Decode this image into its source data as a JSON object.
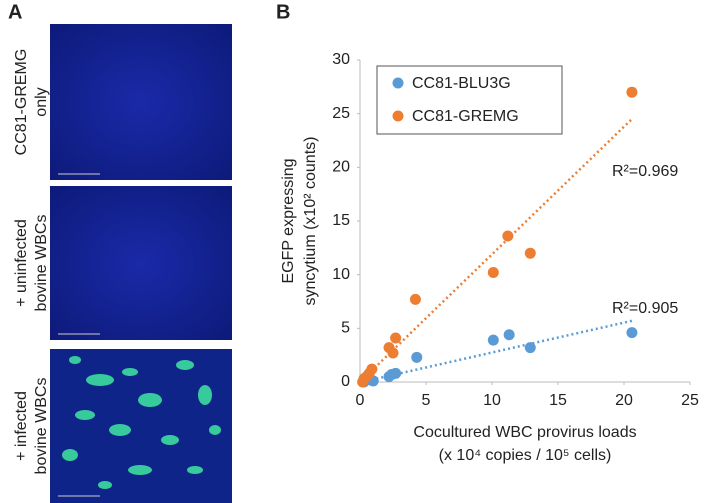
{
  "panel_a": {
    "label": "A",
    "images": [
      {
        "lines": [
          "CC81-GREMG",
          "only"
        ]
      },
      {
        "lines": [
          "+ uninfected",
          "bovine WBCs"
        ]
      },
      {
        "lines": [
          "+ infected",
          "bovine WBCs"
        ]
      }
    ]
  },
  "chart_data": {
    "type": "scatter",
    "panel_label": "B",
    "x_label": [
      "Cocultured WBC provirus loads",
      "(x 10⁴ copies / 10⁵ cells)"
    ],
    "y_label": [
      "EGFP expressing",
      "syncytium (x10² counts)"
    ],
    "xlim": [
      0,
      25
    ],
    "xticks": [
      0,
      5,
      10,
      15,
      20,
      25
    ],
    "ylim": [
      0,
      30
    ],
    "yticks": [
      0,
      5,
      10,
      15,
      20,
      25,
      30
    ],
    "legend": "upper left",
    "series": [
      {
        "name": "CC81-BLU3G",
        "color": "#5b9bd5",
        "x": [
          0.3,
          0.8,
          1.0,
          2.2,
          2.4,
          2.7,
          4.3,
          10.1,
          11.3,
          12.9,
          20.6
        ],
        "values": [
          0,
          0.2,
          0.1,
          0.5,
          0.7,
          0.8,
          2.3,
          3.9,
          4.4,
          3.2,
          4.6
        ],
        "trend_x": [
          0.5,
          20.6
        ],
        "trend_y": [
          0.1,
          5.7
        ],
        "r2_label": "R²=0.905"
      },
      {
        "name": "CC81-GREMG",
        "color": "#ed7d31",
        "x": [
          0.2,
          0.3,
          0.5,
          0.7,
          0.9,
          2.2,
          2.5,
          2.7,
          4.2,
          10.1,
          11.2,
          12.9,
          20.6
        ],
        "values": [
          0,
          0.3,
          0.5,
          0.8,
          1.2,
          3.2,
          2.7,
          4.1,
          7.7,
          10.2,
          13.6,
          12.0,
          27.0
        ],
        "trend_x": [
          0,
          20.6
        ],
        "trend_y": [
          0,
          24.5
        ],
        "r2_label": "R²=0.969"
      }
    ]
  }
}
